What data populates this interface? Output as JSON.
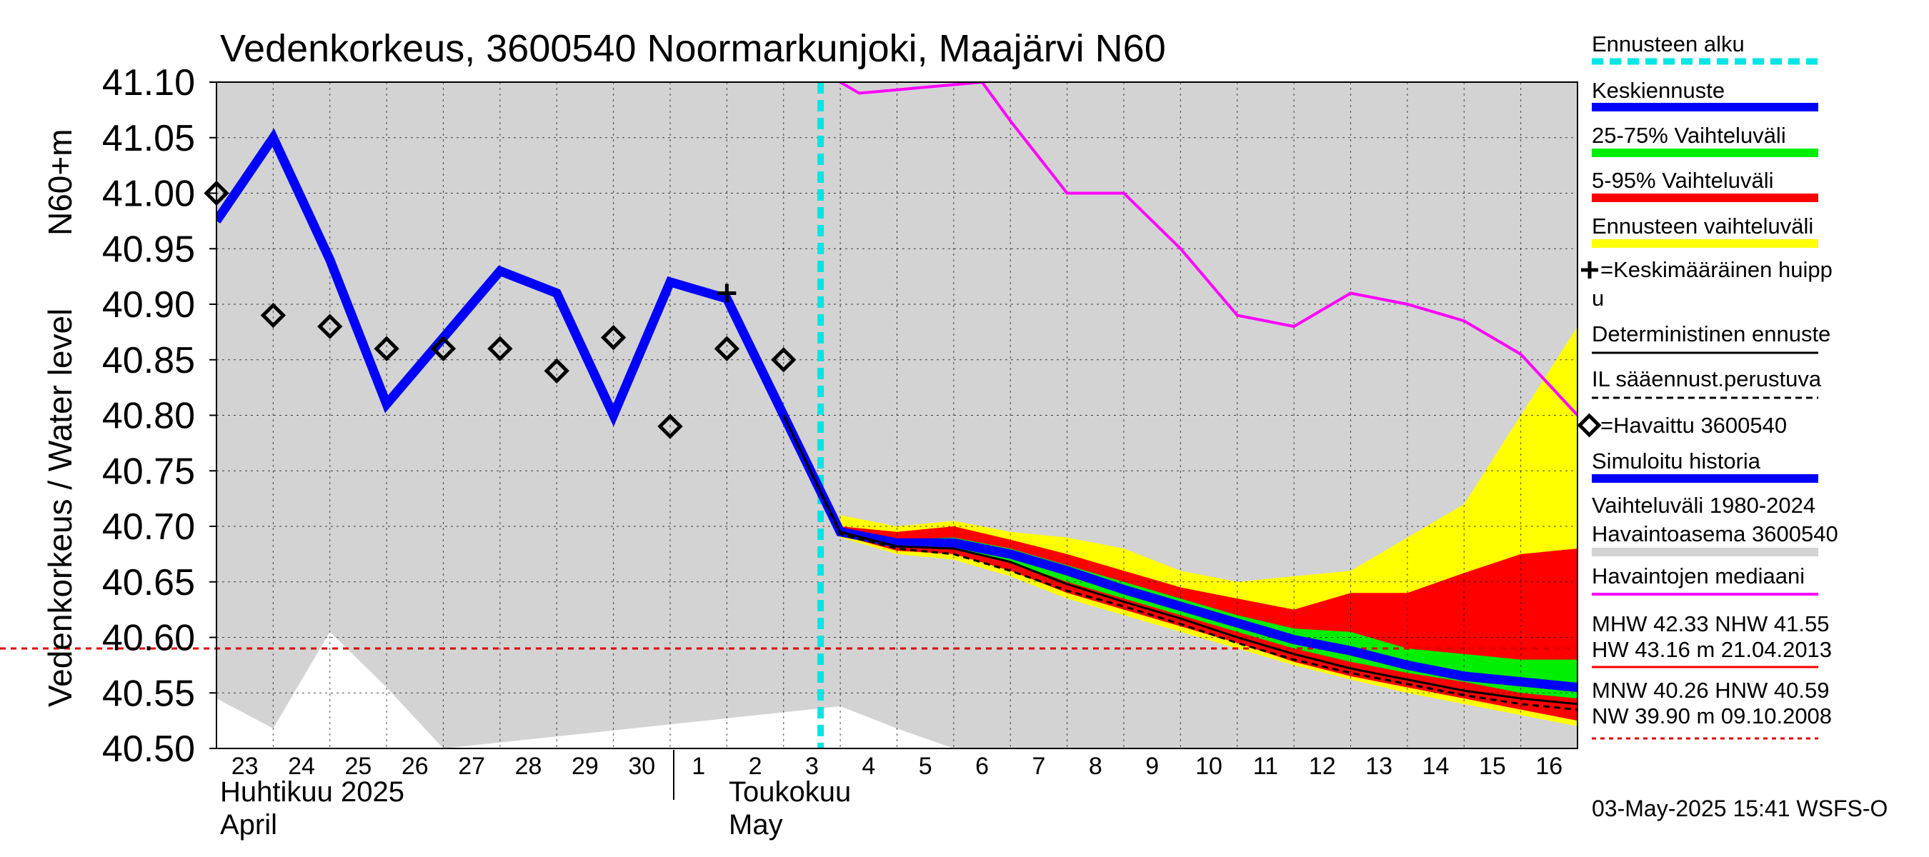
{
  "chart_data": {
    "type": "line",
    "title": "Vedenkorkeus, 3600540 Noormarkunjoki, Maajärvi N60",
    "ylabel_line1": "N60+m",
    "ylabel_line2": "Vedenkorkeus / Water level",
    "ylim": [
      40.5,
      41.1
    ],
    "yticks": [
      "40.50",
      "40.55",
      "40.60",
      "40.65",
      "40.70",
      "40.75",
      "40.80",
      "40.85",
      "40.90",
      "40.95",
      "41.00",
      "41.05",
      "41.10"
    ],
    "x_range": [
      "2025-04-23",
      "2025-05-17"
    ],
    "day_labels": [
      "23",
      "24",
      "25",
      "26",
      "27",
      "28",
      "29",
      "30",
      "1",
      "2",
      "3",
      "4",
      "5",
      "6",
      "7",
      "8",
      "9",
      "10",
      "11",
      "12",
      "13",
      "14",
      "15",
      "16"
    ],
    "month_labels": {
      "april_fi": "Huhtikuu  2025",
      "april_en": "April",
      "may_fi": "Toukokuu",
      "may_en": "May"
    },
    "grid": true,
    "forecast_start": "2025-05-03 15:41",
    "legend_position": "right",
    "legend": {
      "forecast_start": "Ennusteen alku",
      "mean_forecast": "Keskiennuste",
      "range_25_75": "25-75% Vaihteluväli",
      "range_5_95": "5-95% Vaihteluväli",
      "forecast_range": "Ennusteen vaihteluväli",
      "mean_peak_1": "=Keskimääräinen huipp",
      "mean_peak_2": "u",
      "deterministic": "Deterministinen ennuste",
      "il_forecast": "IL sääennust.perustuva",
      "observed": "=Havaittu 3600540",
      "simulated": "Simuloitu historia",
      "hist_range_1": "Vaihteluväli 1980-2024",
      "hist_range_2": " Havaintoasema 3600540",
      "obs_median": "Havaintojen mediaani",
      "stats_1": "MHW  42.33 NHW  41.55",
      "stats_2": "HW  43.16 m 21.04.2013",
      "stats_3": "MNW  40.26 HNW  40.59",
      "stats_4": "NW  39.90 m 09.10.2008"
    },
    "footer": "03-May-2025 15:41 WSFS-O",
    "hnw_level": 40.59,
    "colors": {
      "plot_bg": "#d3d3d3",
      "hist_range": "#ffffff",
      "simulated": "#0000ff",
      "forecast_range": "#ffff00",
      "range_5_95": "#ff0000",
      "range_25_75": "#00ee00",
      "median": "#ff00ff",
      "forecast_start": "#00e5e5",
      "hnw_line": "#dd0000"
    },
    "series": [
      {
        "name": "Simuloitu historia",
        "x": [
          "2025-04-23T00:00",
          "2025-04-24T00:00",
          "2025-04-25T00:00",
          "2025-04-26T00:00",
          "2025-04-27T00:00",
          "2025-04-28T00:00",
          "2025-04-29T00:00",
          "2025-04-30T00:00",
          "2025-05-01T00:00",
          "2025-05-02T00:00",
          "2025-05-03T00:00",
          "2025-05-04T00:00",
          "2025-05-05T00:00",
          "2025-05-06T00:00",
          "2025-05-07T00:00",
          "2025-05-08T00:00",
          "2025-05-09T00:00",
          "2025-05-10T00:00",
          "2025-05-11T00:00",
          "2025-05-12T00:00",
          "2025-05-13T00:00",
          "2025-05-14T00:00",
          "2025-05-15T00:00",
          "2025-05-16T00:00",
          "2025-05-17T00:00"
        ],
        "y": [
          40.975,
          41.05,
          40.94,
          40.81,
          40.87,
          40.93,
          40.91,
          40.8,
          40.92,
          40.905,
          40.8,
          40.695,
          40.685,
          40.685,
          40.675,
          40.66,
          40.643,
          40.628,
          40.613,
          40.598,
          40.588,
          40.575,
          40.565,
          40.56,
          40.555
        ]
      },
      {
        "name": "=Havaittu 3600540",
        "x": [
          "2025-04-23T00:00",
          "2025-04-24T00:00",
          "2025-04-25T00:00",
          "2025-04-26T00:00",
          "2025-04-27T00:00",
          "2025-04-28T00:00",
          "2025-04-29T00:00",
          "2025-04-30T00:00",
          "2025-05-01T00:00",
          "2025-05-02T00:00",
          "2025-05-03T00:00"
        ],
        "y": [
          41.0,
          40.89,
          40.88,
          40.86,
          40.86,
          40.86,
          40.84,
          40.87,
          40.79,
          40.86,
          40.85
        ]
      },
      {
        "name": "Havaintojen mediaani",
        "x": [
          "2025-05-04T00:00",
          "2025-05-04T08:00",
          "2025-05-06T12:00",
          "2025-05-07T00:00",
          "2025-05-08T00:00",
          "2025-05-09T00:00",
          "2025-05-10T00:00",
          "2025-05-11T00:00",
          "2025-05-12T00:00",
          "2025-05-13T00:00",
          "2025-05-14T00:00",
          "2025-05-15T00:00",
          "2025-05-16T00:00",
          "2025-05-17T00:00"
        ],
        "y": [
          41.1,
          41.09,
          41.1,
          41.065,
          41.0,
          41.0,
          40.95,
          40.89,
          40.88,
          40.91,
          40.9,
          40.885,
          40.855,
          40.8
        ]
      },
      {
        "name": "Deterministinen ennuste",
        "x": [
          "2025-05-03T00:00",
          "2025-05-04T00:00",
          "2025-05-05T00:00",
          "2025-05-06T00:00",
          "2025-05-07T00:00",
          "2025-05-08T00:00",
          "2025-05-09T00:00",
          "2025-05-10T00:00",
          "2025-05-11T00:00",
          "2025-05-12T00:00",
          "2025-05-13T00:00",
          "2025-05-14T00:00",
          "2025-05-15T00:00",
          "2025-05-16T00:00",
          "2025-05-17T00:00"
        ],
        "y": [
          40.8,
          40.695,
          40.682,
          40.68,
          40.668,
          40.648,
          40.632,
          40.617,
          40.6,
          40.585,
          40.572,
          40.562,
          40.552,
          40.545,
          40.54
        ]
      },
      {
        "name": "IL sääennust.perustuva",
        "x": [
          "2025-05-03T00:00",
          "2025-05-04T00:00",
          "2025-05-05T00:00",
          "2025-05-06T00:00",
          "2025-05-07T00:00",
          "2025-05-08T00:00",
          "2025-05-09T00:00",
          "2025-05-10T00:00",
          "2025-05-11T00:00",
          "2025-05-12T00:00",
          "2025-05-13T00:00",
          "2025-05-14T00:00",
          "2025-05-15T00:00",
          "2025-05-16T00:00",
          "2025-05-17T00:00"
        ],
        "y": [
          40.8,
          40.693,
          40.68,
          40.675,
          40.66,
          40.642,
          40.628,
          40.612,
          40.595,
          40.58,
          40.568,
          40.558,
          40.548,
          40.54,
          40.535
        ]
      }
    ],
    "bands": [
      {
        "name": "Vaihteluväli 1980-2024",
        "x": [
          "2025-04-23T00:00",
          "2025-04-24T00:00",
          "2025-04-25T00:00",
          "2025-04-26T00:00",
          "2025-04-27T00:00",
          "2025-05-04T00:00",
          "2025-05-05T00:00",
          "2025-05-06T00:00"
        ],
        "low": [
          40.5,
          40.5,
          40.5,
          40.5,
          40.5,
          40.5,
          40.5,
          40.5
        ],
        "high": [
          40.545,
          40.518,
          40.605,
          40.555,
          40.5,
          40.538,
          40.518,
          40.5
        ]
      },
      {
        "name": "Ennusteen vaihteluväli",
        "x": [
          "2025-05-04T00:00",
          "2025-05-05T00:00",
          "2025-05-06T00:00",
          "2025-05-07T00:00",
          "2025-05-08T00:00",
          "2025-05-09T00:00",
          "2025-05-10T00:00",
          "2025-05-11T00:00",
          "2025-05-12T00:00",
          "2025-05-13T00:00",
          "2025-05-14T00:00",
          "2025-05-15T00:00",
          "2025-05-16T00:00",
          "2025-05-17T00:00"
        ],
        "low": [
          40.69,
          40.675,
          40.67,
          40.655,
          40.635,
          40.62,
          40.605,
          40.59,
          40.575,
          40.562,
          40.55,
          40.54,
          40.53,
          40.52
        ],
        "high": [
          40.71,
          40.7,
          40.705,
          40.695,
          40.69,
          40.68,
          40.66,
          40.65,
          40.655,
          40.66,
          40.69,
          40.72,
          40.8,
          40.88
        ]
      },
      {
        "name": "5-95% Vaihteluväli",
        "x": [
          "2025-05-04T00:00",
          "2025-05-05T00:00",
          "2025-05-06T00:00",
          "2025-05-07T00:00",
          "2025-05-08T00:00",
          "2025-05-09T00:00",
          "2025-05-10T00:00",
          "2025-05-11T00:00",
          "2025-05-12T00:00",
          "2025-05-13T00:00",
          "2025-05-14T00:00",
          "2025-05-15T00:00",
          "2025-05-16T00:00",
          "2025-05-17T00:00"
        ],
        "low": [
          40.692,
          40.678,
          40.675,
          40.66,
          40.64,
          40.625,
          40.61,
          40.595,
          40.578,
          40.565,
          40.555,
          40.545,
          40.535,
          40.525
        ],
        "high": [
          40.7,
          40.695,
          40.7,
          40.688,
          40.675,
          40.66,
          40.645,
          40.635,
          40.625,
          40.64,
          40.64,
          40.658,
          40.675,
          40.68
        ]
      },
      {
        "name": "25-75% Vaihteluväli",
        "x": [
          "2025-05-04T00:00",
          "2025-05-05T00:00",
          "2025-05-06T00:00",
          "2025-05-07T00:00",
          "2025-05-08T00:00",
          "2025-05-09T00:00",
          "2025-05-10T00:00",
          "2025-05-11T00:00",
          "2025-05-12T00:00",
          "2025-05-13T00:00",
          "2025-05-14T00:00",
          "2025-05-15T00:00",
          "2025-05-16T00:00",
          "2025-05-17T00:00"
        ],
        "low": [
          40.694,
          40.682,
          40.68,
          40.668,
          40.65,
          40.635,
          40.62,
          40.605,
          40.59,
          40.578,
          40.568,
          40.56,
          40.55,
          40.545
        ],
        "high": [
          40.697,
          40.688,
          40.69,
          40.68,
          40.665,
          40.65,
          40.635,
          40.62,
          40.608,
          40.605,
          40.59,
          40.585,
          40.58,
          40.58
        ]
      }
    ],
    "mean_peak": {
      "x": "2025-05-02T00:00",
      "y": 40.91
    }
  }
}
